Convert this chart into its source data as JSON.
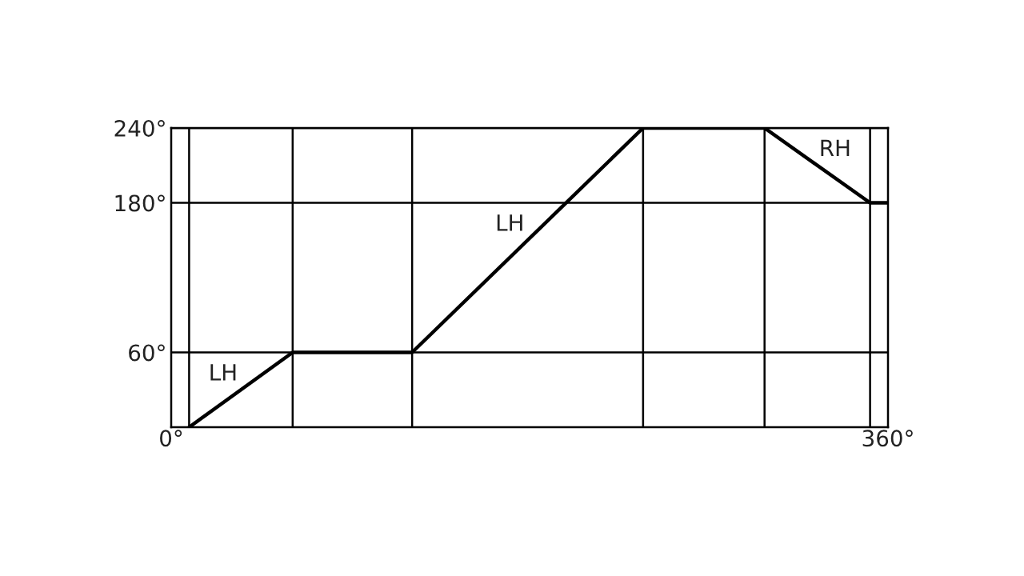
{
  "chart_data": {
    "type": "line",
    "x": [
      9,
      61,
      121,
      237,
      298,
      351,
      360
    ],
    "series": [
      {
        "color": "#000000",
        "values": [
          0,
          60,
          60,
          240,
          240,
          180,
          180
        ]
      }
    ],
    "xlim": [
      0,
      360
    ],
    "xticks": [
      {
        "value": 0,
        "label": "0°"
      },
      {
        "value": 360,
        "label": "360°"
      }
    ],
    "ylim": [
      0,
      240
    ],
    "yticks": [
      {
        "value": 60,
        "label": "60°"
      },
      {
        "value": 180,
        "label": "180°"
      },
      {
        "value": 240,
        "label": "240°"
      }
    ],
    "grid": "y",
    "ref_lines": [
      {
        "axis": "x",
        "value": 9,
        "color": "#000000"
      },
      {
        "axis": "x",
        "value": 61,
        "color": "#000000"
      },
      {
        "axis": "x",
        "value": 121,
        "color": "#000000"
      },
      {
        "axis": "x",
        "value": 237,
        "color": "#000000"
      },
      {
        "axis": "x",
        "value": 298,
        "color": "#000000"
      },
      {
        "axis": "x",
        "value": 351,
        "color": "#000000"
      }
    ],
    "line_style": "solid",
    "annotations": [
      "LH",
      "LH",
      "RH"
    ]
  }
}
